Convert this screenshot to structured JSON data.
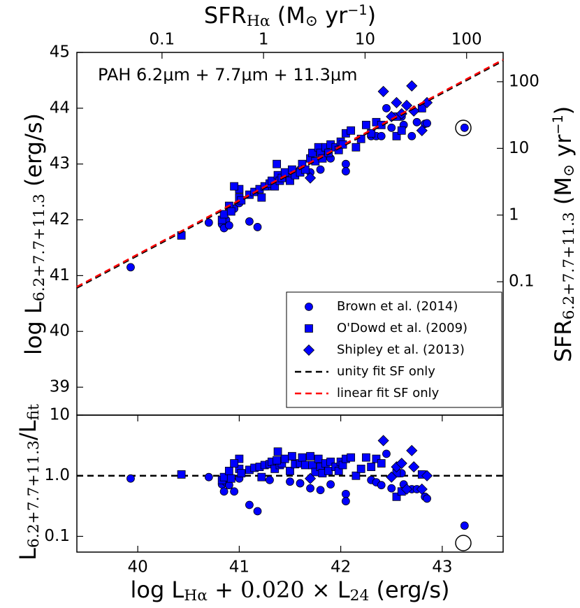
{
  "chart_data": [
    {
      "type": "scatter",
      "annotation": "PAH 6.2μm + 7.7μm + 11.3μm",
      "ylabel": [
        {
          "text": "log L"
        },
        {
          "text": "6.2+7.7+11.3",
          "script": "sub"
        },
        {
          "text": " (erg/s)"
        }
      ],
      "x2label": [
        {
          "text": "SFR"
        },
        {
          "text": "Hα",
          "script": "sub"
        },
        {
          "text": " (M"
        },
        {
          "text": "⊙",
          "script": "sub"
        },
        {
          "text": " yr"
        },
        {
          "text": "−1",
          "script": "sup"
        },
        {
          "text": ")"
        }
      ],
      "y2label": [
        {
          "text": "SFR"
        },
        {
          "text": "6.2+7.7+11.3",
          "script": "sub"
        },
        {
          "text": " (M"
        },
        {
          "text": "⊙",
          "script": "sub"
        },
        {
          "text": " yr"
        },
        {
          "text": "−1",
          "script": "sup"
        },
        {
          "text": ")"
        }
      ],
      "xlim": [
        39.4,
        43.6
      ],
      "ylim": [
        38.5,
        45
      ],
      "yticks": [
        39,
        40,
        41,
        42,
        43,
        44,
        45
      ],
      "x2lim": [
        0.0145,
        229
      ],
      "x2log": true,
      "x2ticks": [
        0.1,
        1,
        10,
        100
      ],
      "y2lim": [
        0.001,
        275
      ],
      "y2log": true,
      "y2ticks": [
        0.1,
        1,
        10,
        100
      ],
      "legend": "lower right",
      "series": [
        {
          "name": "Brown et al. (2014)",
          "marker": "circle",
          "color": "#0000ff",
          "x": [
            39.93,
            40.7,
            40.83,
            40.85,
            40.87,
            40.9,
            41.1,
            41.18,
            41.0,
            40.95,
            41.3,
            41.5,
            41.7,
            41.9,
            42.05,
            42.05,
            42.3,
            42.35,
            42.4,
            42.45,
            42.5,
            42.6,
            42.62,
            42.7,
            42.75,
            42.83,
            42.85,
            43.22,
            41.6,
            41.8
          ],
          "values": [
            41.15,
            41.95,
            41.92,
            41.85,
            42.0,
            41.9,
            41.97,
            41.87,
            42.3,
            42.2,
            42.6,
            42.8,
            42.85,
            43.1,
            43.0,
            42.87,
            43.5,
            43.5,
            43.5,
            44.0,
            43.65,
            43.85,
            43.7,
            43.5,
            43.75,
            43.72,
            43.73,
            43.65,
            42.9,
            42.9
          ]
        },
        {
          "name": "O'Dowd et al. (2009)",
          "marker": "square",
          "color": "#0000ff",
          "x": [
            40.43,
            40.83,
            40.85,
            40.9,
            40.92,
            41.0,
            41.0,
            41.02,
            41.1,
            41.15,
            41.2,
            41.22,
            41.25,
            41.3,
            41.32,
            41.35,
            41.38,
            41.4,
            41.42,
            41.45,
            41.5,
            41.52,
            41.55,
            41.6,
            41.62,
            41.65,
            41.7,
            41.72,
            41.75,
            41.78,
            41.8,
            41.82,
            41.85,
            41.88,
            41.9,
            41.95,
            41.98,
            42.0,
            42.02,
            42.05,
            42.1,
            42.15,
            42.2,
            42.25,
            42.3,
            42.35,
            42.4,
            42.55,
            42.55,
            42.6,
            42.8,
            40.95,
            41.37
          ],
          "values": [
            41.72,
            42.0,
            42.1,
            42.25,
            42.15,
            42.4,
            42.55,
            42.35,
            42.45,
            42.5,
            42.55,
            42.4,
            42.6,
            42.65,
            42.7,
            42.6,
            42.8,
            42.7,
            42.75,
            42.85,
            42.7,
            42.9,
            42.8,
            42.85,
            43.0,
            42.9,
            43.1,
            43.2,
            43.05,
            43.3,
            43.2,
            43.1,
            43.3,
            43.2,
            43.35,
            43.3,
            43.25,
            43.4,
            43.35,
            43.55,
            43.6,
            43.3,
            43.45,
            43.7,
            43.55,
            43.75,
            43.7,
            43.5,
            43.85,
            43.6,
            44.0,
            42.6,
            43.0
          ]
        },
        {
          "name": "Shipley et al. (2013)",
          "marker": "diamond",
          "color": "#0000ff",
          "x": [
            41.7,
            42.42,
            42.5,
            42.55,
            42.6,
            42.65,
            42.7,
            42.72,
            42.8,
            42.85
          ],
          "values": [
            42.75,
            44.3,
            43.85,
            44.1,
            43.9,
            44.05,
            44.4,
            43.95,
            43.6,
            44.1
          ]
        },
        {
          "name": "unity fit SF only",
          "kind": "line",
          "color": "#000000",
          "x": [
            39.4,
            43.6
          ],
          "values": [
            40.78,
            44.85
          ]
        },
        {
          "name": "linear fit SF only",
          "kind": "line",
          "color": "#ff0000",
          "x": [
            39.4,
            43.6
          ],
          "values": [
            40.8,
            44.87
          ]
        }
      ]
    },
    {
      "type": "scatter",
      "xlabel": [
        {
          "text": "log L"
        },
        {
          "text": "Hα",
          "script": "sub"
        },
        {
          "text": " + "
        },
        {
          "text": "0.020 × ",
          "font": "serif"
        },
        {
          "text": "L"
        },
        {
          "text": "24",
          "script": "sub"
        },
        {
          "text": " (erg/s)"
        }
      ],
      "ylabel": [
        {
          "text": "L"
        },
        {
          "text": "6.2+7.7+11.3",
          "script": "sub"
        },
        {
          "text": "/L"
        },
        {
          "text": "fit",
          "script": "sub"
        }
      ],
      "xlim": [
        39.4,
        43.6
      ],
      "xticks": [
        40,
        41,
        42,
        43
      ],
      "ylim": [
        0.055,
        10
      ],
      "ylog": true,
      "yticks": [
        0.1,
        {
          "value": 1,
          "label": "1.0"
        },
        10
      ],
      "hline": 1,
      "hline_color": "#000000",
      "series": [
        {
          "name": "Brown et al. (2014)",
          "marker": "circle",
          "color": "#0000ff",
          "x": [
            39.93,
            40.7,
            40.83,
            40.85,
            40.87,
            40.9,
            41.1,
            41.18,
            41.0,
            40.95,
            41.3,
            41.5,
            41.7,
            41.9,
            42.05,
            42.05,
            42.3,
            42.35,
            42.4,
            42.45,
            42.5,
            42.6,
            42.62,
            42.7,
            42.75,
            42.83,
            42.85,
            43.22,
            41.6,
            41.8
          ],
          "values": [
            0.9,
            0.95,
            0.72,
            0.55,
            0.78,
            0.7,
            0.33,
            0.26,
            0.9,
            0.55,
            0.85,
            0.8,
            0.62,
            0.72,
            0.5,
            0.38,
            0.85,
            0.78,
            0.7,
            2.3,
            0.62,
            1.1,
            0.72,
            0.6,
            0.6,
            0.45,
            0.42,
            0.15,
            0.75,
            0.58
          ]
        },
        {
          "name": "O'Dowd et al. (2009)",
          "marker": "square",
          "color": "#0000ff",
          "x": [
            40.43,
            40.83,
            40.85,
            40.9,
            40.92,
            41.0,
            41.0,
            41.02,
            41.1,
            41.15,
            41.2,
            41.22,
            41.25,
            41.3,
            41.32,
            41.35,
            41.38,
            41.4,
            41.42,
            41.45,
            41.5,
            41.52,
            41.55,
            41.6,
            41.62,
            41.65,
            41.7,
            41.72,
            41.75,
            41.78,
            41.8,
            41.82,
            41.85,
            41.88,
            41.9,
            41.95,
            41.98,
            42.0,
            42.02,
            42.05,
            42.1,
            42.15,
            42.2,
            42.25,
            42.3,
            42.35,
            42.4,
            42.55,
            42.55,
            42.6,
            42.8,
            40.95,
            41.37
          ],
          "values": [
            1.05,
            0.85,
            0.95,
            1.2,
            0.9,
            1.3,
            1.9,
            1.1,
            1.25,
            1.35,
            1.4,
            0.95,
            1.5,
            1.55,
            1.7,
            1.3,
            2.5,
            1.5,
            1.6,
            1.9,
            1.2,
            2.1,
            1.55,
            1.6,
            2.0,
            1.5,
            2.1,
            1.5,
            1.15,
            1.9,
            1.4,
            1.1,
            1.6,
            1.2,
            1.7,
            1.4,
            1.2,
            1.7,
            1.5,
            1.9,
            2.0,
            1.0,
            1.3,
            2.0,
            1.4,
            1.9,
            1.6,
            0.45,
            1.1,
            0.55,
            1.05,
            1.6,
            1.8
          ]
        },
        {
          "name": "Shipley et al. (2013)",
          "marker": "diamond",
          "color": "#0000ff",
          "x": [
            41.7,
            42.42,
            42.5,
            42.55,
            42.6,
            42.65,
            42.7,
            42.72,
            42.8,
            42.85
          ],
          "values": [
            0.9,
            3.8,
            0.95,
            1.4,
            1.6,
            0.6,
            2.6,
            1.4,
            0.6,
            1.0
          ]
        }
      ]
    }
  ]
}
